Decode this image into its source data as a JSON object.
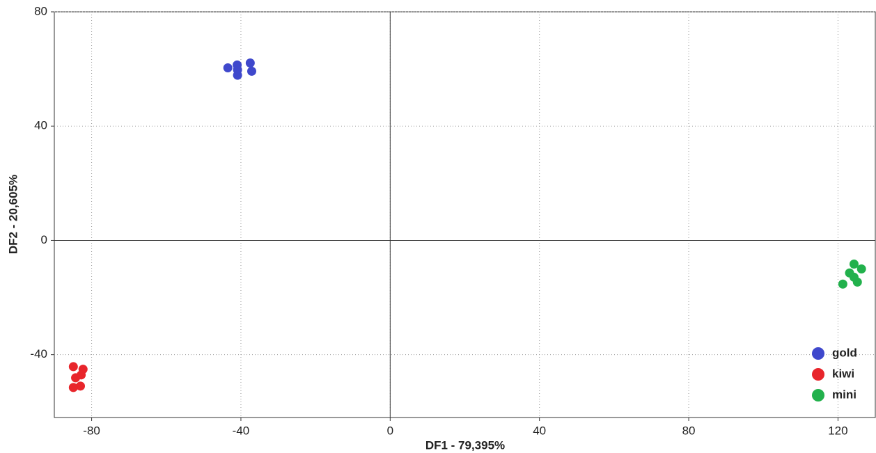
{
  "chart_data": {
    "type": "scatter",
    "x_label": "DF1 - 79,395%",
    "y_label": "DF2 - 20,605%",
    "xlim": [
      -90,
      130
    ],
    "ylim": [
      -62,
      80
    ],
    "xticks": [
      -80,
      -40,
      0,
      40,
      80,
      120
    ],
    "yticks": [
      -40,
      0,
      40,
      80
    ],
    "grid": true,
    "legend": "lower right",
    "series": [
      {
        "name": "gold",
        "color": "#3f48cc",
        "x": [
          -43.5,
          -41,
          -40.9,
          -40.9,
          -37.5,
          -37.1
        ],
        "y": [
          60.4,
          61.4,
          59.7,
          57.8,
          62.1,
          59.2
        ]
      },
      {
        "name": "kiwi",
        "color": "#e8252b",
        "x": [
          -84.9,
          -82.3,
          -82.8,
          -84.3,
          -83,
          -84.9
        ],
        "y": [
          -44.2,
          -45.1,
          -47.1,
          -48.1,
          -51,
          -51.5
        ]
      },
      {
        "name": "mini",
        "color": "#22b14c",
        "x": [
          124.3,
          126.3,
          123.1,
          124.3,
          125.2,
          121.3
        ],
        "y": [
          -8.3,
          -10,
          -11.4,
          -12.9,
          -14.6,
          -15.3
        ]
      }
    ]
  }
}
